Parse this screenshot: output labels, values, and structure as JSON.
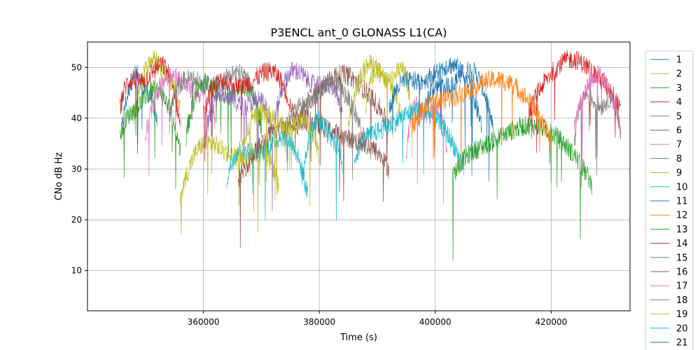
{
  "chart_data": {
    "type": "line",
    "title": "P3ENCL ant_0 GLONASS L1(CA)",
    "xlabel": "Time (s)",
    "ylabel": "CNo dB Hz",
    "xlim": [
      340000,
      433600
    ],
    "ylim": [
      2.1,
      55
    ],
    "xticks": [
      360000,
      380000,
      400000,
      420000
    ],
    "yticks": [
      10,
      20,
      30,
      40,
      50
    ],
    "grid": true,
    "legend_position": "right-outside",
    "series": [
      {
        "name": "1",
        "color": "#1f77b4",
        "segments": [
          [
            345800,
            352000,
            47
          ],
          [
            398000,
            410000,
            48
          ]
        ]
      },
      {
        "name": "2",
        "color": "#bcbd22",
        "segments": [
          [
            348000,
            356000,
            50
          ],
          [
            388000,
            396000,
            49
          ]
        ]
      },
      {
        "name": "3",
        "color": "#2ca02c",
        "segments": [
          [
            345600,
            356000,
            44
          ],
          [
            403000,
            427000,
            37
          ]
        ]
      },
      {
        "name": "4",
        "color": "#d62728",
        "segments": [
          [
            345600,
            356000,
            49
          ],
          [
            416000,
            432000,
            50
          ]
        ]
      },
      {
        "name": "5",
        "color": "#9467bd",
        "segments": [
          [
            372000,
            384000,
            48
          ]
        ]
      },
      {
        "name": "6",
        "color": "#8c564b",
        "segments": [
          [
            376000,
            392000,
            47
          ]
        ]
      },
      {
        "name": "7",
        "color": "#e377c2",
        "segments": [
          [
            350000,
            362000,
            47
          ],
          [
            395000,
            402000,
            42
          ]
        ]
      },
      {
        "name": "8",
        "color": "#7f7f7f",
        "segments": [
          [
            354000,
            370000,
            48
          ],
          [
            424000,
            432000,
            44
          ]
        ]
      },
      {
        "name": "9",
        "color": "#bcbd22",
        "segments": [
          [
            356000,
            373000,
            34
          ],
          [
            385000,
            394000,
            49
          ]
        ]
      },
      {
        "name": "10",
        "color": "#17becf",
        "segments": [
          [
            364000,
            378000,
            35
          ],
          [
            386000,
            405000,
            40
          ]
        ]
      },
      {
        "name": "11",
        "color": "#1f77b4",
        "segments": [
          [
            392000,
            408000,
            49
          ]
        ]
      },
      {
        "name": "12",
        "color": "#ff7f0e",
        "segments": [
          [
            396000,
            420000,
            46
          ]
        ]
      },
      {
        "name": "13",
        "color": "#2ca02c",
        "segments": [
          [
            357000,
            370000,
            46
          ]
        ]
      },
      {
        "name": "14",
        "color": "#d62728",
        "segments": [
          [
            360000,
            376000,
            48
          ]
        ]
      },
      {
        "name": "15",
        "color": "#9467bd",
        "segments": [
          [
            360000,
            372000,
            44
          ]
        ]
      },
      {
        "name": "16",
        "color": "#8c564b",
        "segments": [
          [
            366000,
            392000,
            38
          ]
        ]
      },
      {
        "name": "17",
        "color": "#e377c2",
        "segments": [
          [
            424000,
            432000,
            47
          ]
        ]
      },
      {
        "name": "18",
        "color": "#7f7f7f",
        "segments": [
          [
            374000,
            388000,
            45
          ]
        ]
      },
      {
        "name": "19",
        "color": "#bcbd22",
        "segments": [
          [
            366000,
            380000,
            40
          ]
        ]
      },
      {
        "name": "20",
        "color": "#17becf",
        "segments": [
          [
            377000,
            384000,
            38
          ]
        ]
      },
      {
        "name": "21",
        "color": "#1f77b4",
        "segments": []
      }
    ]
  }
}
